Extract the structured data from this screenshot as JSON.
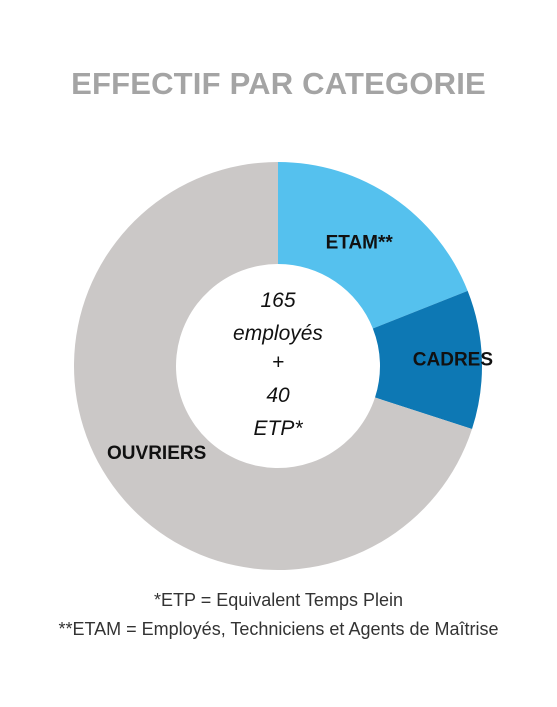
{
  "title": "EFFECTIF PAR CATEGORIE",
  "chart_data": {
    "type": "pie",
    "donut": true,
    "title": "EFFECTIF PAR CATEGORIE",
    "series": [
      {
        "name": "ETAM**",
        "value": 19,
        "color": "#55c1ee"
      },
      {
        "name": "CADRES",
        "value": 11,
        "color": "#0d78b4"
      },
      {
        "name": "OUVRIERS",
        "value": 70,
        "color": "#cbc8c7"
      }
    ],
    "center_text": [
      "165",
      "employés",
      "+",
      "40",
      "ETP*"
    ]
  },
  "footnotes": [
    "*ETP = Equivalent Temps Plein",
    "**ETAM = Employés, Techniciens et Agents de Maîtrise"
  ]
}
